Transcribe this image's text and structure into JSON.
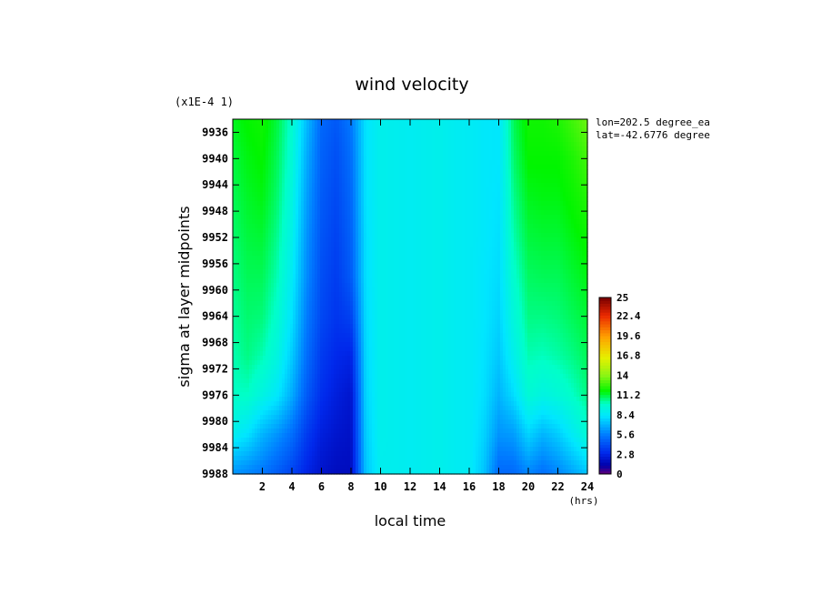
{
  "chart_data": {
    "type": "heatmap",
    "title": "wind velocity",
    "xlabel": "local time",
    "x_unit": "(hrs)",
    "ylabel": "sigma at layer midpoints",
    "y_scale_note": "(x1E-4 1)",
    "annotation": [
      "lon=202.5 degree_ea",
      "lat=-42.6776 degree"
    ],
    "xlim": [
      0,
      24
    ],
    "ylim": [
      9934,
      9988
    ],
    "y_inverted": true,
    "x_ticks": [
      "2",
      "4",
      "6",
      "8",
      "10",
      "12",
      "14",
      "16",
      "18",
      "20",
      "22",
      "24"
    ],
    "y_ticks": [
      "9936",
      "9940",
      "9944",
      "9948",
      "9952",
      "9956",
      "9960",
      "9964",
      "9968",
      "9972",
      "9976",
      "9980",
      "9984",
      "9988"
    ],
    "colorbar": {
      "min": 0,
      "max": 25,
      "tick_labels": [
        "25",
        "22.4",
        "19.6",
        "16.8",
        "14",
        "11.2",
        "8.4",
        "5.6",
        "2.8",
        "0"
      ]
    },
    "x": [
      0,
      1,
      2,
      3,
      4,
      5,
      6,
      7,
      8,
      9,
      10,
      11,
      12,
      13,
      14,
      15,
      16,
      17,
      18,
      19,
      20,
      21,
      22,
      23,
      24
    ],
    "y": [
      9934,
      9940,
      9946,
      9952,
      9958,
      9964,
      9970,
      9976,
      9982,
      9988
    ],
    "z": [
      [
        11.5,
        11.8,
        12.0,
        11.2,
        9.8,
        7.2,
        5.0,
        4.5,
        5.5,
        8.2,
        8.9,
        8.8,
        8.7,
        8.8,
        8.9,
        8.7,
        8.6,
        8.4,
        8.3,
        11.0,
        12.0,
        12.0,
        12.2,
        12.8,
        13.5
      ],
      [
        11.2,
        11.6,
        11.8,
        11.0,
        9.6,
        6.8,
        4.8,
        4.2,
        5.2,
        8.2,
        8.9,
        8.8,
        8.7,
        8.8,
        8.9,
        8.7,
        8.6,
        8.4,
        8.3,
        10.8,
        11.8,
        11.8,
        11.8,
        12.2,
        12.8
      ],
      [
        11.0,
        11.4,
        11.6,
        10.8,
        9.3,
        6.5,
        4.6,
        4.0,
        5.0,
        8.2,
        8.9,
        8.8,
        8.7,
        8.8,
        8.9,
        8.7,
        8.6,
        8.4,
        8.2,
        10.5,
        11.5,
        11.6,
        11.6,
        11.9,
        12.3
      ],
      [
        10.8,
        11.2,
        11.3,
        10.5,
        9.0,
        6.2,
        4.4,
        3.8,
        4.8,
        8.1,
        8.9,
        8.8,
        8.7,
        8.8,
        8.9,
        8.7,
        8.6,
        8.4,
        8.1,
        10.2,
        11.2,
        11.3,
        11.3,
        11.6,
        11.9
      ],
      [
        10.6,
        11.0,
        11.0,
        10.2,
        8.6,
        6.0,
        4.2,
        3.6,
        4.6,
        8.1,
        8.9,
        8.8,
        8.7,
        8.8,
        8.9,
        8.7,
        8.6,
        8.3,
        8.0,
        9.8,
        10.9,
        11.0,
        11.0,
        11.3,
        11.6
      ],
      [
        10.4,
        10.8,
        10.7,
        9.8,
        8.2,
        5.6,
        4.0,
        3.4,
        3.8,
        8.0,
        8.9,
        8.8,
        8.7,
        8.8,
        8.9,
        8.7,
        8.6,
        8.3,
        7.8,
        9.4,
        10.6,
        10.6,
        10.7,
        11.0,
        11.3
      ],
      [
        10.2,
        10.6,
        10.2,
        9.3,
        7.6,
        5.2,
        3.6,
        3.0,
        2.8,
        7.9,
        8.9,
        8.8,
        8.7,
        8.8,
        8.9,
        8.7,
        8.6,
        8.2,
        7.5,
        8.9,
        10.2,
        10.1,
        10.3,
        10.6,
        11.0
      ],
      [
        10.0,
        10.0,
        9.2,
        8.4,
        6.8,
        4.6,
        3.2,
        2.6,
        2.2,
        7.8,
        8.9,
        8.8,
        8.7,
        8.8,
        8.9,
        8.7,
        8.6,
        8.1,
        7.0,
        8.0,
        9.6,
        9.2,
        9.5,
        10.0,
        10.6
      ],
      [
        8.8,
        8.2,
        7.0,
        6.2,
        5.2,
        3.6,
        2.6,
        2.2,
        2.0,
        7.6,
        8.9,
        8.8,
        8.7,
        8.8,
        8.9,
        8.7,
        8.6,
        7.8,
        6.2,
        6.4,
        7.8,
        7.0,
        7.6,
        8.6,
        9.6
      ],
      [
        6.2,
        5.8,
        5.4,
        4.6,
        3.8,
        2.8,
        2.1,
        1.8,
        1.8,
        7.4,
        8.8,
        8.8,
        8.7,
        8.8,
        8.9,
        8.7,
        8.6,
        7.4,
        5.0,
        5.0,
        5.8,
        5.2,
        5.8,
        6.6,
        7.4
      ]
    ]
  }
}
